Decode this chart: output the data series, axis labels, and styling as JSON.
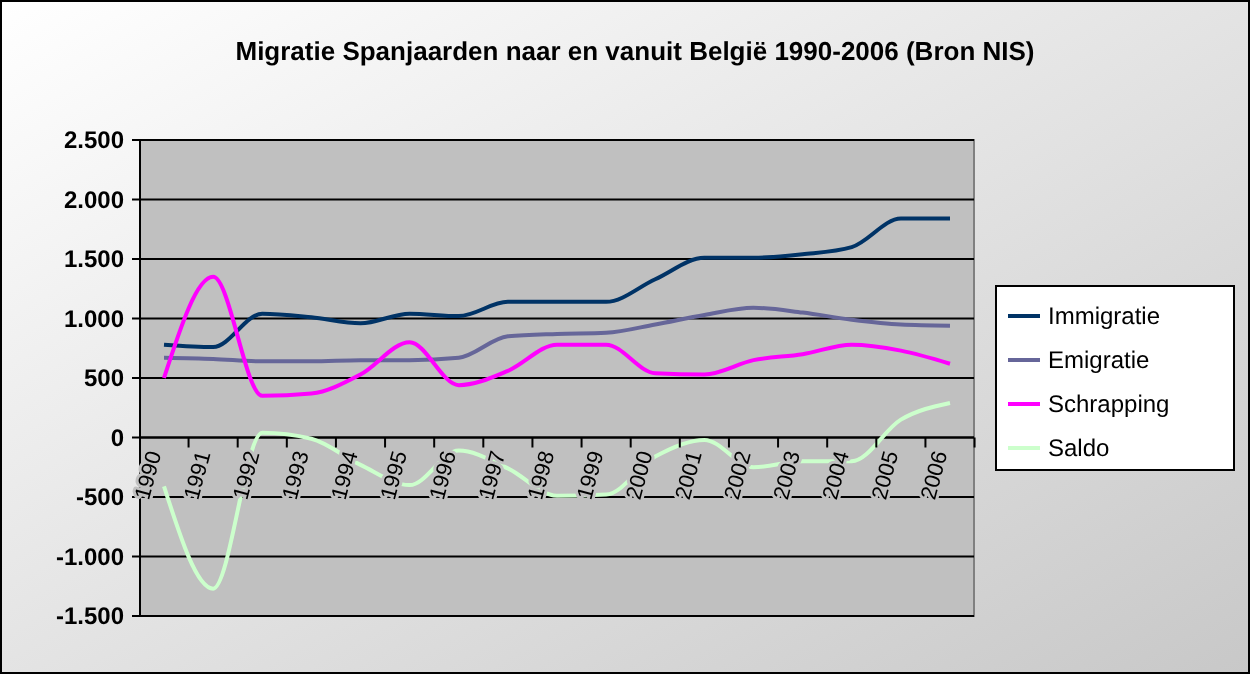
{
  "chart_data": {
    "type": "line",
    "title": "Migratie Spanjaarden naar en vanuit België 1990-2006 (Bron NIS)",
    "categories": [
      "1990",
      "1991",
      "1992",
      "1993",
      "1994",
      "1995",
      "1996",
      "1997",
      "1998",
      "1999",
      "2000",
      "2001",
      "2002",
      "2003",
      "2004",
      "2005",
      "2006"
    ],
    "series": [
      {
        "name": "Immigratie",
        "color": "#003366",
        "values": [
          780,
          760,
          1040,
          1010,
          960,
          1040,
          1020,
          1140,
          1140,
          1140,
          1330,
          1510,
          1510,
          1540,
          1600,
          1840,
          1840
        ]
      },
      {
        "name": "Emigratie",
        "color": "#666699",
        "values": [
          670,
          660,
          640,
          640,
          650,
          650,
          670,
          850,
          870,
          880,
          950,
          1030,
          1090,
          1050,
          990,
          950,
          940
        ]
      },
      {
        "name": "Schrapping",
        "color": "#ff00ff",
        "values": [
          500,
          1350,
          350,
          370,
          530,
          800,
          440,
          560,
          780,
          780,
          540,
          530,
          650,
          700,
          780,
          730,
          620
        ]
      },
      {
        "name": "Saldo",
        "color": "#ccffcc",
        "values": [
          -410,
          -1270,
          40,
          -10,
          -230,
          -400,
          -110,
          -260,
          -490,
          -480,
          -160,
          -20,
          -250,
          -200,
          -200,
          150,
          290
        ]
      }
    ],
    "ylim": [
      -1500,
      2500
    ],
    "yticks": [
      {
        "value": -1500,
        "label": "-1.500"
      },
      {
        "value": -1000,
        "label": "-1.000"
      },
      {
        "value": -500,
        "label": "-500"
      },
      0,
      500,
      {
        "value": 1000,
        "label": "1.000"
      },
      {
        "value": 1500,
        "label": "1.500"
      },
      {
        "value": 2000,
        "label": "2.000"
      },
      {
        "value": 2500,
        "label": "2.500"
      }
    ],
    "grid": "y",
    "legend": "right",
    "marker": "none",
    "line_style": "solid"
  }
}
